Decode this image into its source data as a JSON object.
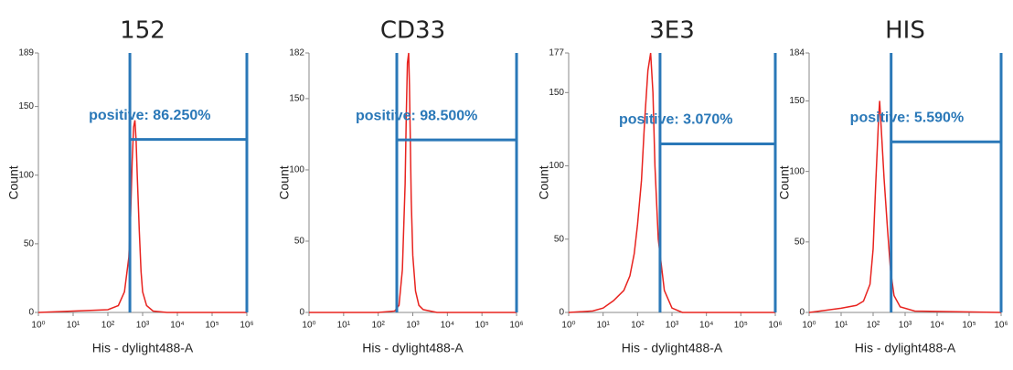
{
  "chart_data": [
    {
      "type": "line",
      "title": "152",
      "x_label": "His - dylight488-A",
      "y_label": "Count",
      "annotation": "positive: 86.250%",
      "x": [
        1,
        10,
        100,
        200,
        300,
        400,
        450,
        500,
        550,
        600,
        650,
        700,
        800,
        900,
        1000,
        1300,
        2000,
        5000,
        1000000
      ],
      "series": [
        {
          "color": "#e8231f",
          "values": [
            0,
            1,
            2,
            5,
            15,
            40,
            70,
            110,
            135,
            140,
            125,
            100,
            60,
            30,
            15,
            5,
            1,
            0,
            0
          ]
        }
      ],
      "xlog": true,
      "xlim": [
        1,
        1000000
      ],
      "xticks": [
        {
          "value": 1,
          "label": "10⁰"
        },
        {
          "value": 10,
          "label": "10¹"
        },
        {
          "value": 100,
          "label": "10²"
        },
        {
          "value": 1000,
          "label": "10³"
        },
        {
          "value": 10000,
          "label": "10⁴"
        },
        {
          "value": 100000,
          "label": "10⁵"
        },
        {
          "value": 1000000,
          "label": "10⁶"
        }
      ],
      "ylim": [
        0,
        189
      ],
      "yticks": [
        0,
        50,
        100,
        150,
        189
      ],
      "gate": {
        "x": 430,
        "y": 126
      },
      "gate_color": "#2a78b8"
    },
    {
      "type": "line",
      "title": "CD33",
      "x_label": "His - dylight488-A",
      "y_label": "Count",
      "annotation": "positive: 98.500%",
      "x": [
        1,
        100,
        300,
        400,
        500,
        600,
        650,
        700,
        760,
        800,
        850,
        900,
        1000,
        1200,
        1500,
        2000,
        5000,
        1000000
      ],
      "series": [
        {
          "color": "#e8231f",
          "values": [
            0,
            0,
            1,
            5,
            30,
            90,
            140,
            175,
            182,
            160,
            120,
            80,
            40,
            15,
            5,
            2,
            0,
            0
          ]
        }
      ],
      "xlog": true,
      "xlim": [
        1,
        1000000
      ],
      "xticks": [
        {
          "value": 1,
          "label": "10⁰"
        },
        {
          "value": 10,
          "label": "10¹"
        },
        {
          "value": 100,
          "label": "10²"
        },
        {
          "value": 1000,
          "label": "10³"
        },
        {
          "value": 10000,
          "label": "10⁴"
        },
        {
          "value": 100000,
          "label": "10⁵"
        },
        {
          "value": 1000000,
          "label": "10⁶"
        }
      ],
      "ylim": [
        0,
        182
      ],
      "yticks": [
        0,
        50,
        100,
        150,
        182
      ],
      "gate": {
        "x": 345,
        "y": 121
      },
      "gate_color": "#2a78b8"
    },
    {
      "type": "line",
      "title": "3E3",
      "x_label": "His - dylight488-A",
      "y_label": "Count",
      "annotation": "positive: 3.070%",
      "x": [
        1,
        5,
        10,
        20,
        40,
        60,
        80,
        100,
        130,
        160,
        200,
        240,
        280,
        320,
        400,
        600,
        1000,
        2000,
        1000000
      ],
      "series": [
        {
          "color": "#e8231f",
          "values": [
            0,
            1,
            3,
            8,
            15,
            25,
            40,
            60,
            90,
            130,
            165,
            177,
            150,
            100,
            50,
            15,
            3,
            0,
            0
          ]
        }
      ],
      "xlog": true,
      "xlim": [
        1,
        1000000
      ],
      "xticks": [
        {
          "value": 1,
          "label": "10⁰"
        },
        {
          "value": 10,
          "label": "10¹"
        },
        {
          "value": 100,
          "label": "10²"
        },
        {
          "value": 1000,
          "label": "10³"
        },
        {
          "value": 10000,
          "label": "10⁴"
        },
        {
          "value": 100000,
          "label": "10⁵"
        },
        {
          "value": 1000000,
          "label": "10⁶"
        }
      ],
      "ylim": [
        0,
        177
      ],
      "yticks": [
        0,
        50,
        100,
        150,
        177
      ],
      "gate": {
        "x": 450,
        "y": 115
      },
      "gate_color": "#2a78b8"
    },
    {
      "type": "line",
      "title": "HIS",
      "x_label": "His - dylight488-A",
      "y_label": "Count",
      "annotation": "positive: 5.590%",
      "x": [
        1,
        10,
        30,
        50,
        80,
        100,
        120,
        150,
        160,
        180,
        220,
        280,
        350,
        450,
        700,
        2000,
        1000000
      ],
      "series": [
        {
          "color": "#e8231f",
          "values": [
            0,
            3,
            5,
            8,
            20,
            45,
            90,
            140,
            150,
            130,
            95,
            60,
            30,
            12,
            4,
            1,
            0
          ]
        }
      ],
      "xlog": true,
      "xlim": [
        1,
        1000000
      ],
      "xticks": [
        {
          "value": 1,
          "label": "10⁰"
        },
        {
          "value": 10,
          "label": "10¹"
        },
        {
          "value": 100,
          "label": "10²"
        },
        {
          "value": 1000,
          "label": "10³"
        },
        {
          "value": 10000,
          "label": "10⁴"
        },
        {
          "value": 100000,
          "label": "10⁵"
        },
        {
          "value": 1000000,
          "label": "10⁶"
        }
      ],
      "ylim": [
        0,
        184
      ],
      "yticks": [
        0,
        50,
        100,
        150,
        184
      ],
      "gate": {
        "x": 365,
        "y": 121
      },
      "gate_color": "#2a78b8"
    }
  ]
}
